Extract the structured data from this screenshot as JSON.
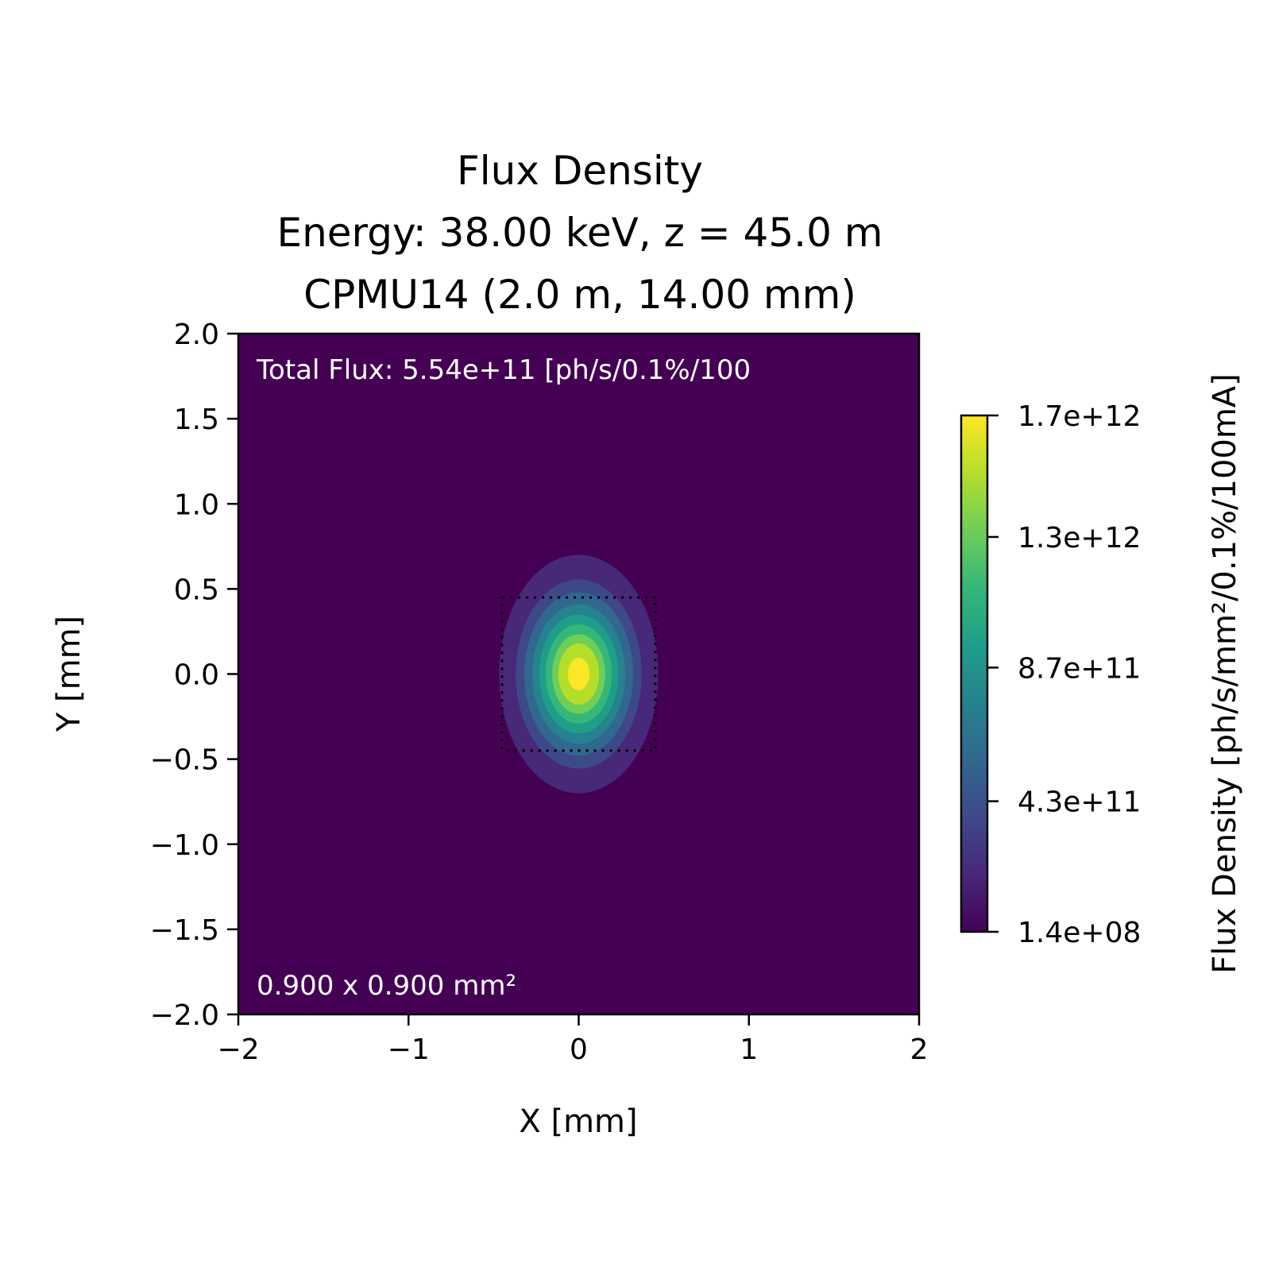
{
  "chart_data": {
    "type": "heatmap",
    "title_lines": [
      "Flux Density",
      "Energy: 38.00 keV, z = 45.0 m",
      "CPMU14 (2.0 m, 14.00 mm)"
    ],
    "xlabel": "X [mm]",
    "ylabel": "Y [mm]",
    "xlim": [
      -2,
      2
    ],
    "ylim": [
      -2,
      2
    ],
    "x_ticks": [
      -2,
      -1,
      0,
      1,
      2
    ],
    "x_tick_labels": [
      "−2",
      "−1",
      "0",
      "1",
      "2"
    ],
    "y_ticks": [
      2.0,
      1.5,
      1.0,
      0.5,
      0.0,
      -0.5,
      -1.0,
      -1.5,
      -2.0
    ],
    "y_tick_labels": [
      "2.0",
      "1.5",
      "1.0",
      "0.5",
      "0.0",
      "−0.5",
      "−1.0",
      "−1.5",
      "−2.0"
    ],
    "colormap": "viridis",
    "colorbar": {
      "label": "Flux Density [ph/s/mm²/0.1%/100mA]",
      "min": 140000000.0,
      "max": 1700000000000.0,
      "ticks": [
        1700000000000.0,
        1300000000000.0,
        870000000000.0,
        430000000000.0,
        140000000.0
      ],
      "tick_labels": [
        "1.7e+12",
        "1.3e+12",
        "8.7e+11",
        "4.3e+11",
        "1.4e+08"
      ]
    },
    "beam": {
      "center": [
        0.0,
        0.0
      ],
      "sigma_x_mm": 0.2,
      "sigma_y_mm": 0.3,
      "peak": 1700000000000.0
    },
    "aperture_box": {
      "x": [
        -0.45,
        0.45
      ],
      "y": [
        -0.45,
        0.45
      ],
      "style": "dotted"
    },
    "annotations": {
      "total_flux": "Total Flux: 5.54e+11 [ph/s/0.1%/100",
      "aperture_size": "0.900 x 0.900 mm²"
    }
  },
  "colors": {
    "background": "#440154",
    "viridis_stops": [
      "#440154",
      "#482878",
      "#3e4989",
      "#31688e",
      "#26828e",
      "#1f9e89",
      "#35b779",
      "#6ece58",
      "#b5de2b",
      "#fde725"
    ]
  }
}
